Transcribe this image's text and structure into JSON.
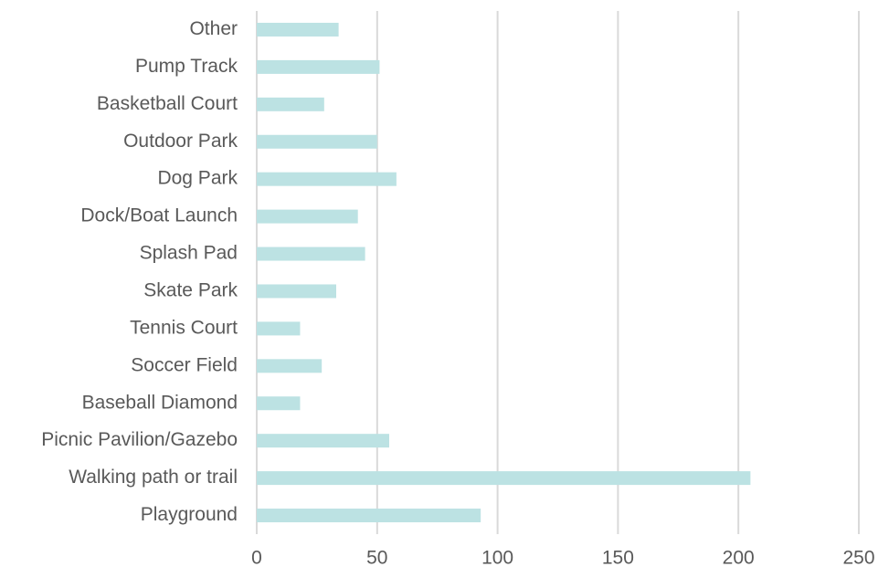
{
  "chart_data": {
    "type": "bar",
    "orientation": "horizontal",
    "categories": [
      "Other",
      "Pump Track",
      "Basketball Court",
      "Outdoor Park",
      "Dog Park",
      "Dock/Boat Launch",
      "Splash Pad",
      "Skate Park",
      "Tennis Court",
      "Soccer Field",
      "Baseball Diamond",
      "Picnic Pavilion/Gazebo",
      "Walking path or trail",
      "Playground"
    ],
    "values": [
      34,
      51,
      28,
      50,
      58,
      42,
      45,
      33,
      18,
      27,
      18,
      55,
      205,
      93
    ],
    "color": "#bce2e3",
    "xlim": [
      0,
      250
    ],
    "xticks": [
      0,
      50,
      100,
      150,
      200,
      250
    ],
    "grid": true
  }
}
